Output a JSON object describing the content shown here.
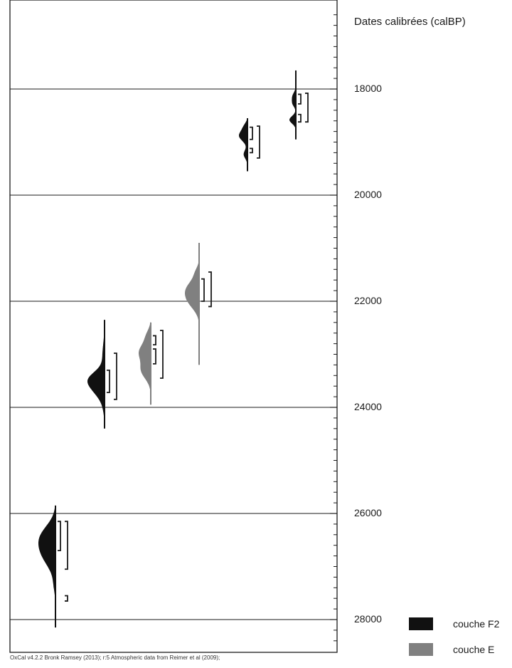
{
  "chart_data": {
    "type": "density",
    "ylabel": "Dates calibrées (calBP)",
    "ylim": [
      16500,
      28500
    ],
    "yaxis_reversed": true,
    "ticks": [
      18000,
      20000,
      22000,
      24000,
      26000,
      28000
    ],
    "tick_labels": [
      "18000",
      "20000",
      "22000",
      "24000",
      "26000",
      "28000"
    ],
    "gridlines": true,
    "legend": [
      {
        "label": "couche F2",
        "color": "#111111"
      },
      {
        "label": "couche E",
        "color": "#808080"
      }
    ],
    "distributions": [
      {
        "layer": "couche F2",
        "range": [
          25850,
          28150
        ],
        "peaks": [
          [
            26420,
            220,
            1.0
          ],
          [
            26780,
            240,
            0.95
          ],
          [
            27350,
            150,
            0.12
          ]
        ],
        "ranges_68": [
          [
            26150,
            26700
          ]
        ],
        "ranges_95": [
          [
            26150,
            27050
          ],
          [
            27550,
            27650
          ]
        ]
      },
      {
        "layer": "couche F2",
        "range": [
          22350,
          24400
        ],
        "peaks": [
          [
            23450,
            140,
            1.0
          ],
          [
            23650,
            170,
            0.9
          ],
          [
            23050,
            250,
            0.2
          ],
          [
            24000,
            150,
            0.1
          ]
        ],
        "ranges_68": [
          [
            23300,
            23720
          ]
        ],
        "ranges_95": [
          [
            22980,
            23850
          ]
        ]
      },
      {
        "layer": "couche E",
        "range": [
          22400,
          23950
        ],
        "peaks": [
          [
            22950,
            150,
            1.0
          ],
          [
            23300,
            160,
            0.85
          ],
          [
            22650,
            120,
            0.35
          ]
        ],
        "ranges_68": [
          [
            22650,
            22820
          ],
          [
            22900,
            23180
          ]
        ],
        "ranges_95": [
          [
            22550,
            23450
          ]
        ]
      },
      {
        "layer": "couche E",
        "range": [
          20900,
          23200
        ],
        "peaks": [
          [
            21750,
            160,
            1.0
          ],
          [
            22000,
            160,
            0.85
          ],
          [
            21450,
            100,
            0.25
          ]
        ],
        "ranges_68": [
          [
            21580,
            22000
          ]
        ],
        "ranges_95": [
          [
            21450,
            22100
          ]
        ]
      },
      {
        "layer": "couche F2",
        "range": [
          18550,
          19550
        ],
        "peaks": [
          [
            18880,
            100,
            1.0
          ],
          [
            19230,
            80,
            0.45
          ],
          [
            18700,
            70,
            0.3
          ]
        ],
        "ranges_68": [
          [
            18720,
            18950
          ],
          [
            19120,
            19200
          ]
        ],
        "ranges_95": [
          [
            18700,
            19300
          ]
        ]
      },
      {
        "layer": "couche F2",
        "range": [
          17650,
          18950
        ],
        "peaks": [
          [
            18150,
            80,
            0.55
          ],
          [
            18280,
            60,
            0.4
          ],
          [
            18580,
            70,
            1.0
          ]
        ],
        "ranges_68": [
          [
            18100,
            18280
          ],
          [
            18480,
            18620
          ]
        ],
        "ranges_95": [
          [
            18080,
            18620
          ]
        ]
      }
    ]
  },
  "footer": "OxCal v4.2.2 Bronk Ramsey (2013); r:5 Atmospheric data from Reimer et al (2009);"
}
